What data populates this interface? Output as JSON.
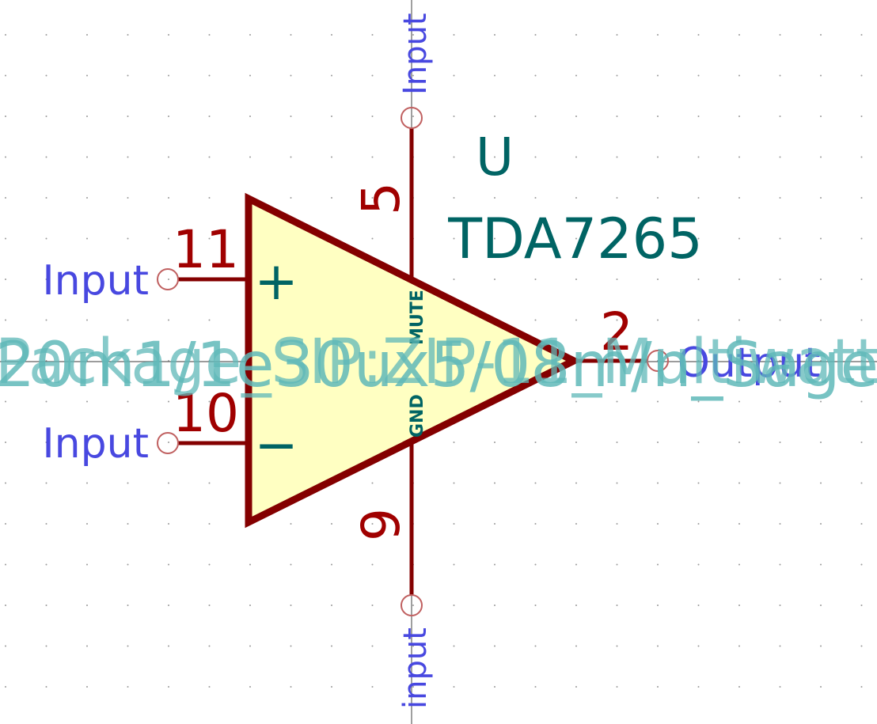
{
  "colors": {
    "background": "#ffffff",
    "grid_dot": "#9a9a9a",
    "axis_line": "#606060",
    "body_outline": "#840000",
    "body_fill": "#ffffc2",
    "pin_line": "#840000",
    "pin_number": "#a00000",
    "pin_name": "#006464",
    "pin_type": "#4848e0",
    "pin_terminal": "#c06060",
    "reference": "#006464",
    "value": "#006464",
    "footprint": "#5fb8b8"
  },
  "symbol": {
    "reference": "U",
    "value": "TDA7265",
    "footprint": "20m1/1e30ux5/08m/n_Sage",
    "footprint_overlap": "Package_SIP:ZIP-11_Multiwatt"
  },
  "pins": {
    "in_plus": {
      "number": "11",
      "name": "+",
      "type": "Input"
    },
    "in_minus": {
      "number": "10",
      "name": "−",
      "type": "Input"
    },
    "mute": {
      "number": "5",
      "name": "MUTE",
      "type": "Input"
    },
    "gnd": {
      "number": "9",
      "name": "GND",
      "type": "input"
    },
    "out": {
      "number": "2",
      "name": "",
      "type": "Output"
    }
  }
}
